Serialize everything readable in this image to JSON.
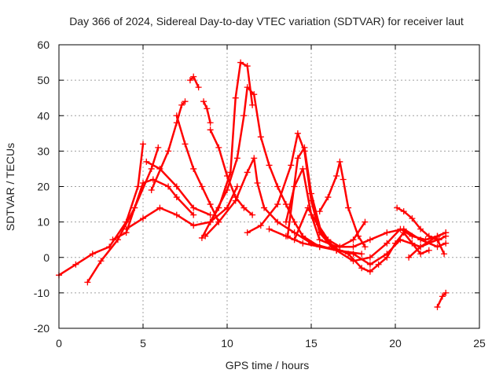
{
  "chart_data": {
    "type": "scatter",
    "title": "Day 366 of 2024, Sidereal Day-to-day VTEC variation (SDTVAR) for receiver laut",
    "xlabel": "GPS time / hours",
    "ylabel": "SDTVAR / TECUs",
    "xlim": [
      0,
      25
    ],
    "ylim": [
      -20,
      60
    ],
    "xticks": [
      0,
      5,
      10,
      15,
      20,
      25
    ],
    "yticks": [
      -20,
      -10,
      0,
      10,
      20,
      30,
      40,
      50,
      60
    ],
    "grid": true,
    "marker": "+",
    "series_color": "#ff0000",
    "series": [
      {
        "name": "track-1",
        "points": [
          [
            0,
            -5
          ],
          [
            1,
            -2
          ],
          [
            2,
            1
          ],
          [
            3,
            3
          ],
          [
            4,
            10
          ],
          [
            4.7,
            20
          ],
          [
            5,
            32
          ]
        ]
      },
      {
        "name": "track-2",
        "points": [
          [
            1.7,
            -7
          ],
          [
            2.5,
            -1
          ],
          [
            3.5,
            5
          ],
          [
            4.5,
            14
          ],
          [
            5.5,
            25
          ],
          [
            5.9,
            31
          ]
        ]
      },
      {
        "name": "track-3",
        "points": [
          [
            3.2,
            5
          ],
          [
            4,
            7
          ],
          [
            5,
            21
          ],
          [
            5.6,
            22
          ],
          [
            6.5,
            20
          ],
          [
            7,
            17
          ],
          [
            8,
            12
          ]
        ]
      },
      {
        "name": "track-4",
        "points": [
          [
            4,
            8
          ],
          [
            5,
            11
          ],
          [
            6,
            14
          ],
          [
            7,
            12
          ],
          [
            8,
            9
          ],
          [
            9,
            10
          ],
          [
            10,
            14
          ],
          [
            10.6,
            20
          ]
        ]
      },
      {
        "name": "track-5",
        "points": [
          [
            5.5,
            19
          ],
          [
            6.5,
            30
          ],
          [
            7,
            38
          ],
          [
            7.3,
            43
          ],
          [
            7.5,
            44
          ]
        ]
      },
      {
        "name": "track-6",
        "points": [
          [
            5.2,
            27
          ],
          [
            6,
            25
          ],
          [
            7,
            20
          ],
          [
            8,
            14
          ],
          [
            9,
            12
          ]
        ]
      },
      {
        "name": "track-7",
        "points": [
          [
            7,
            40
          ],
          [
            7.5,
            32
          ],
          [
            8,
            25
          ],
          [
            8.5,
            20
          ],
          [
            9,
            15
          ],
          [
            9.5,
            10
          ]
        ]
      },
      {
        "name": "track-8",
        "points": [
          [
            7.8,
            50
          ],
          [
            8,
            51
          ],
          [
            8.3,
            48
          ]
        ]
      },
      {
        "name": "track-9",
        "points": [
          [
            8.6,
            44
          ],
          [
            8.8,
            42
          ],
          [
            9,
            38
          ]
        ]
      },
      {
        "name": "track-10",
        "points": [
          [
            9,
            36
          ],
          [
            9.5,
            31
          ],
          [
            10,
            23
          ],
          [
            10.5,
            17
          ],
          [
            11,
            14
          ],
          [
            11.5,
            12
          ]
        ]
      },
      {
        "name": "track-11",
        "points": [
          [
            8.5,
            5.5
          ],
          [
            9,
            10
          ],
          [
            9.5,
            14
          ],
          [
            10.2,
            24
          ],
          [
            10.5,
            45
          ],
          [
            10.8,
            55
          ],
          [
            11.2,
            54
          ],
          [
            11.5,
            43
          ]
        ]
      },
      {
        "name": "track-12",
        "points": [
          [
            9,
            10
          ],
          [
            10,
            19
          ],
          [
            10.6,
            28
          ],
          [
            11,
            40
          ],
          [
            11.2,
            48
          ],
          [
            11.6,
            46
          ],
          [
            12,
            34
          ],
          [
            12.5,
            26
          ],
          [
            13,
            20
          ],
          [
            13.5,
            15
          ],
          [
            14,
            10
          ],
          [
            14.5,
            6
          ],
          [
            15.5,
            3
          ],
          [
            16.5,
            2
          ]
        ]
      },
      {
        "name": "track-13",
        "points": [
          [
            8.7,
            6
          ],
          [
            9.5,
            10
          ],
          [
            10.5,
            16
          ],
          [
            11.2,
            24
          ],
          [
            11.6,
            28
          ],
          [
            11.8,
            21
          ],
          [
            12.2,
            14
          ],
          [
            13,
            10
          ],
          [
            14,
            7
          ],
          [
            15,
            4
          ],
          [
            16.5,
            2
          ],
          [
            18,
            1
          ]
        ]
      },
      {
        "name": "track-14",
        "points": [
          [
            11.2,
            7
          ],
          [
            12,
            9
          ],
          [
            13,
            15
          ],
          [
            13.8,
            26
          ],
          [
            14.2,
            35
          ],
          [
            14.6,
            30
          ],
          [
            15,
            16
          ],
          [
            15.5,
            7
          ],
          [
            16.2,
            3
          ],
          [
            17.2,
            1
          ],
          [
            18,
            -3
          ],
          [
            18.5,
            -4
          ],
          [
            19,
            -2
          ],
          [
            19.5,
            0
          ],
          [
            20,
            4
          ],
          [
            20.5,
            7
          ],
          [
            21,
            4
          ],
          [
            21.5,
            1
          ],
          [
            22,
            2
          ]
        ]
      },
      {
        "name": "track-15",
        "points": [
          [
            13.6,
            6
          ],
          [
            14.2,
            28
          ],
          [
            14.6,
            31
          ],
          [
            15,
            18
          ],
          [
            15.6,
            7
          ],
          [
            16.5,
            2
          ],
          [
            17.5,
            -1
          ],
          [
            18.5,
            0
          ],
          [
            19.5,
            4
          ],
          [
            20.3,
            8
          ],
          [
            21,
            6
          ],
          [
            21.8,
            5
          ],
          [
            22.5,
            6
          ],
          [
            23,
            7
          ]
        ]
      },
      {
        "name": "track-16",
        "points": [
          [
            13.5,
            10
          ],
          [
            14,
            20
          ],
          [
            14.5,
            25
          ],
          [
            15,
            12
          ],
          [
            15.5,
            5
          ],
          [
            16.5,
            3
          ],
          [
            17.5,
            3
          ],
          [
            18.5,
            5
          ],
          [
            19.5,
            7
          ],
          [
            20.5,
            8
          ],
          [
            21.5,
            5
          ],
          [
            22.5,
            3
          ],
          [
            23,
            4
          ]
        ]
      },
      {
        "name": "track-17",
        "points": [
          [
            14,
            5
          ],
          [
            14.8,
            14
          ],
          [
            15.3,
            10
          ],
          [
            16,
            5
          ],
          [
            16.7,
            3
          ],
          [
            17.5,
            5
          ],
          [
            18.2,
            10
          ]
        ]
      },
      {
        "name": "track-18",
        "points": [
          [
            15.5,
            13
          ],
          [
            16,
            17
          ],
          [
            16.5,
            23
          ],
          [
            16.7,
            27
          ],
          [
            16.9,
            22
          ],
          [
            17.2,
            14
          ],
          [
            17.8,
            6
          ],
          [
            18.2,
            3
          ]
        ]
      },
      {
        "name": "track-19",
        "points": [
          [
            12.5,
            8
          ],
          [
            13.5,
            6
          ],
          [
            14.5,
            4
          ],
          [
            15.5,
            3
          ]
        ]
      },
      {
        "name": "track-20",
        "points": [
          [
            16.7,
            2
          ],
          [
            17.5,
            1
          ],
          [
            18.5,
            -2
          ],
          [
            19.5,
            1
          ],
          [
            20.3,
            5
          ],
          [
            21.5,
            3
          ],
          [
            22.5,
            5
          ],
          [
            22.9,
            1
          ]
        ]
      },
      {
        "name": "track-21",
        "points": [
          [
            20.1,
            14
          ],
          [
            20.5,
            13
          ],
          [
            21,
            11
          ],
          [
            21.5,
            8
          ],
          [
            22,
            6
          ],
          [
            22.6,
            5
          ],
          [
            23,
            6
          ]
        ]
      },
      {
        "name": "track-22",
        "points": [
          [
            20.8,
            0
          ],
          [
            21.5,
            3
          ],
          [
            22.5,
            6
          ],
          [
            23,
            7
          ]
        ]
      },
      {
        "name": "track-23",
        "points": [
          [
            22.5,
            -14
          ],
          [
            22.8,
            -11
          ],
          [
            23,
            -10
          ]
        ]
      }
    ]
  }
}
